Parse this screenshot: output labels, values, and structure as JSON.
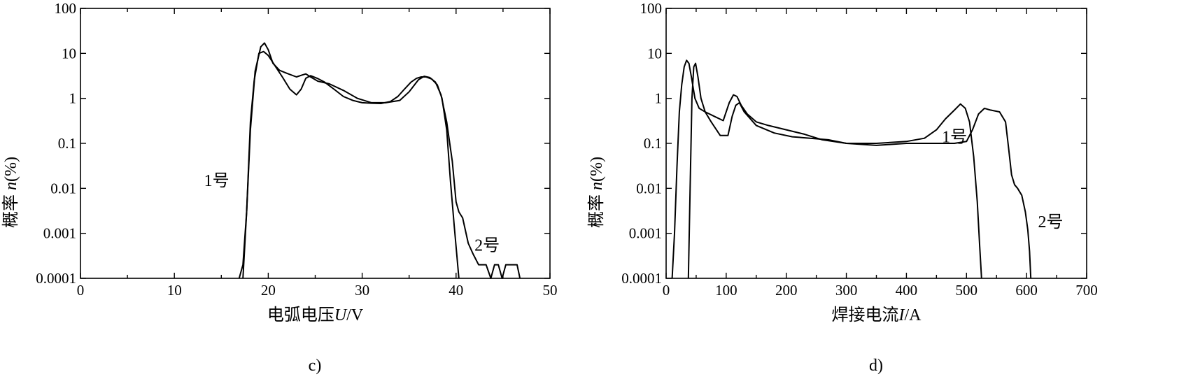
{
  "chart_data": [
    {
      "type": "line",
      "panel_label": "c)",
      "xlabel_prefix": "电弧电压",
      "xlabel_var": "U",
      "xlabel_unit": "/V",
      "ylabel_prefix": "概率 ",
      "ylabel_var": "n",
      "ylabel_unit": "(%)",
      "xlim": [
        0,
        50
      ],
      "ylim": [
        0.0001,
        100
      ],
      "yscale": "log",
      "xticks": [
        0,
        10,
        20,
        30,
        40,
        50
      ],
      "xticklabels": [
        "0",
        "10",
        "20",
        "30",
        "40",
        "50"
      ],
      "yticks": [
        0.0001,
        0.001,
        0.01,
        0.1,
        1,
        10,
        100
      ],
      "yticklabels": [
        "0.0001",
        "0.001",
        "0.01",
        "0.1",
        "1",
        "10",
        "100"
      ],
      "grid": false,
      "annotations": [
        {
          "text": "1号",
          "x": 14.5,
          "y": 0.015
        },
        {
          "text": "2号",
          "x": 43.3,
          "y": 0.00055
        }
      ],
      "series": [
        {
          "name": "1号",
          "x": [
            16.9,
            17.3,
            17.7,
            18.1,
            18.5,
            19.0,
            19.5,
            20.0,
            20.8,
            21.5,
            22.3,
            23.0,
            23.5,
            24.0,
            24.5,
            25.2,
            26.0,
            27.0,
            28.0,
            29.0,
            30.0,
            31.0,
            32.0,
            33.0,
            33.8,
            34.5,
            35.2,
            35.8,
            36.3,
            36.8,
            37.4,
            38.0,
            38.5,
            39.0,
            39.4,
            39.8,
            40.1,
            40.3
          ],
          "y": [
            0.0001,
            0.0002,
            0.003,
            0.3,
            2.5,
            10,
            11,
            9,
            5,
            3,
            1.6,
            1.2,
            1.6,
            2.8,
            3.2,
            2.8,
            2.3,
            1.6,
            1.1,
            0.9,
            0.8,
            0.78,
            0.77,
            0.85,
            1.1,
            1.6,
            2.3,
            2.8,
            3.0,
            3.0,
            2.7,
            2.0,
            1.0,
            0.2,
            0.015,
            0.0015,
            0.0003,
            0.0001
          ]
        },
        {
          "name": "2号",
          "x": [
            17.3,
            17.7,
            18.1,
            18.6,
            19.2,
            19.6,
            20.0,
            20.5,
            21.2,
            22.0,
            23.0,
            23.6,
            24.0,
            24.5,
            25.3,
            26.5,
            28.0,
            29.5,
            31.0,
            32.5,
            34.0,
            35.0,
            36.0,
            36.6,
            37.2,
            37.8,
            38.4,
            39.0,
            39.6,
            40.0,
            40.3,
            40.7,
            41.3,
            41.8,
            42.4,
            43.2,
            43.7,
            44.1,
            44.5,
            44.9,
            45.3,
            45.7,
            46.1,
            46.5,
            46.8
          ],
          "y": [
            0.0001,
            0.003,
            0.2,
            4,
            14,
            17,
            12,
            6,
            4.2,
            3.6,
            3.0,
            3.3,
            3.5,
            3.0,
            2.4,
            2.1,
            1.5,
            1.0,
            0.8,
            0.8,
            0.9,
            1.4,
            2.6,
            3.1,
            2.9,
            2.3,
            1.2,
            0.3,
            0.04,
            0.005,
            0.003,
            0.0022,
            0.0006,
            0.00035,
            0.0002,
            0.0002,
            0.0001,
            0.0002,
            0.0002,
            0.0001,
            0.0002,
            0.0002,
            0.0002,
            0.0002,
            0.0001
          ]
        }
      ]
    },
    {
      "type": "line",
      "panel_label": "d)",
      "xlabel_prefix": "焊接电流",
      "xlabel_var": "I",
      "xlabel_unit": "/A",
      "ylabel_prefix": "概率 ",
      "ylabel_var": "n",
      "ylabel_unit": "(%)",
      "xlim": [
        0,
        700
      ],
      "ylim": [
        0.0001,
        100
      ],
      "yscale": "log",
      "xticks": [
        0,
        100,
        200,
        300,
        400,
        500,
        600,
        700
      ],
      "xticklabels": [
        "0",
        "100",
        "200",
        "300",
        "400",
        "500",
        "600",
        "700"
      ],
      "yticks": [
        0.0001,
        0.001,
        0.01,
        0.1,
        1,
        10,
        100
      ],
      "yticklabels": [
        "0.0001",
        "0.001",
        "0.01",
        "0.1",
        "1",
        "10",
        "100"
      ],
      "grid": false,
      "annotations": [
        {
          "text": "1号",
          "x": 480,
          "y": 0.14
        },
        {
          "text": "2号",
          "x": 640,
          "y": 0.0018
        }
      ],
      "series": [
        {
          "name": "1号",
          "x": [
            10,
            14,
            18,
            22,
            26,
            30,
            34,
            38,
            42,
            48,
            55,
            65,
            80,
            95,
            105,
            112,
            118,
            125,
            135,
            150,
            170,
            200,
            230,
            260,
            300,
            350,
            400,
            430,
            450,
            465,
            480,
            490,
            498,
            505,
            512,
            518,
            522,
            525
          ],
          "y": [
            0.0001,
            0.001,
            0.03,
            0.5,
            2,
            5,
            7,
            6,
            3,
            1,
            0.6,
            0.5,
            0.4,
            0.32,
            0.8,
            1.2,
            1.1,
            0.7,
            0.45,
            0.3,
            0.25,
            0.2,
            0.16,
            0.12,
            0.1,
            0.1,
            0.11,
            0.13,
            0.2,
            0.35,
            0.55,
            0.75,
            0.6,
            0.3,
            0.05,
            0.005,
            0.0005,
            0.0001
          ]
        },
        {
          "name": "2号",
          "x": [
            37,
            40,
            43,
            46,
            49,
            53,
            58,
            65,
            75,
            90,
            103,
            110,
            116,
            122,
            130,
            150,
            180,
            210,
            240,
            270,
            300,
            350,
            400,
            450,
            480,
            500,
            510,
            520,
            530,
            540,
            555,
            565,
            570,
            575,
            580,
            585,
            592,
            598,
            602,
            605,
            607
          ],
          "y": [
            0.0001,
            0.01,
            1,
            5,
            6,
            3,
            1,
            0.5,
            0.3,
            0.15,
            0.15,
            0.4,
            0.7,
            0.8,
            0.5,
            0.25,
            0.17,
            0.14,
            0.13,
            0.12,
            0.1,
            0.09,
            0.1,
            0.1,
            0.1,
            0.11,
            0.2,
            0.45,
            0.6,
            0.55,
            0.5,
            0.3,
            0.08,
            0.02,
            0.012,
            0.01,
            0.007,
            0.003,
            0.0012,
            0.0004,
            0.0001
          ]
        }
      ]
    }
  ]
}
